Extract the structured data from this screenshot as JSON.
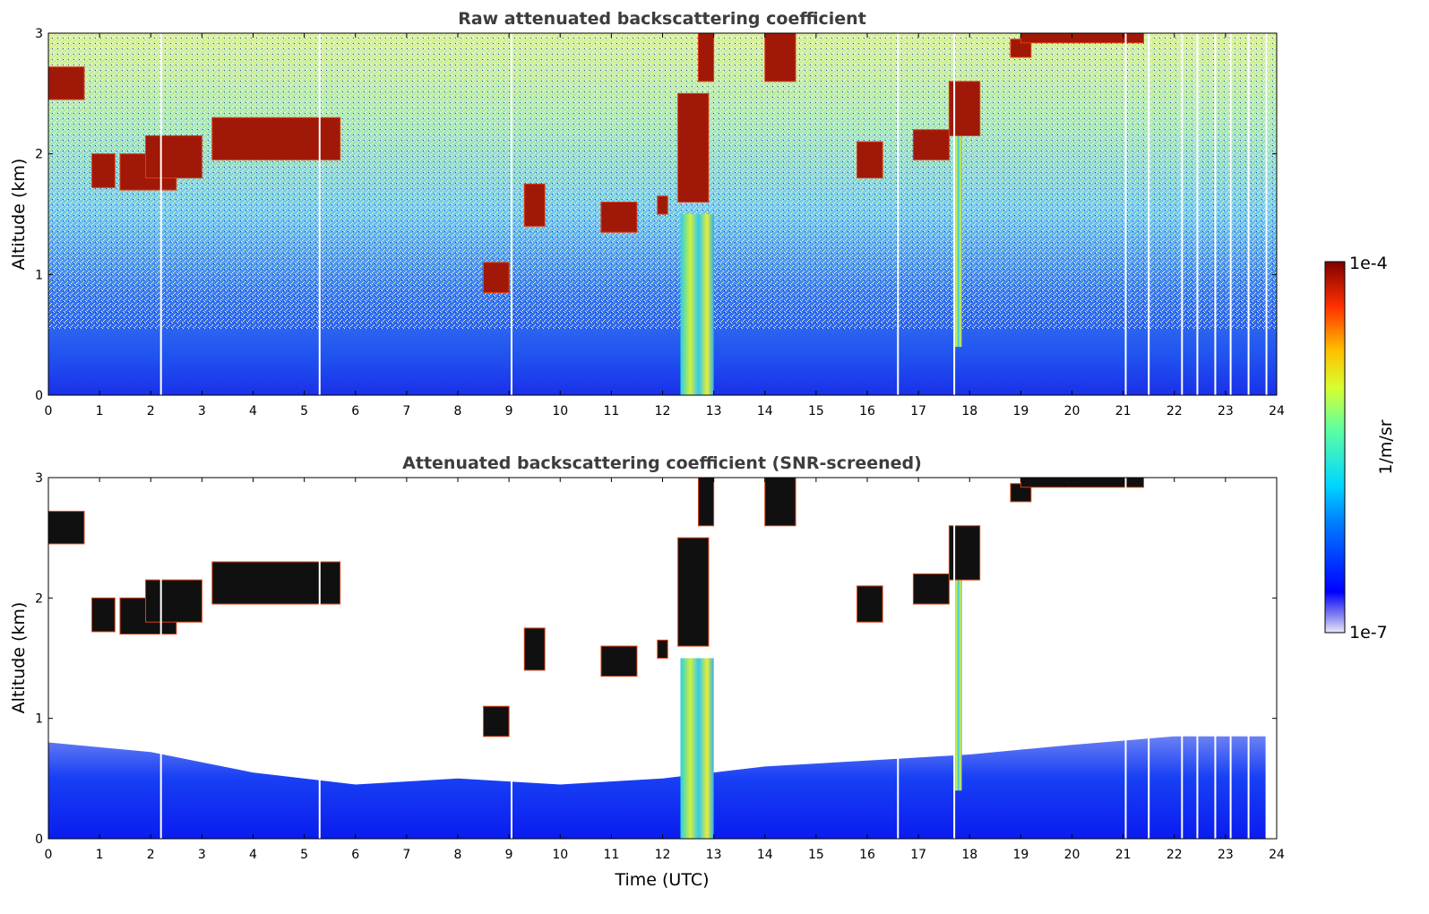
{
  "chart_data": {
    "type": "heatmap",
    "panels": [
      {
        "title": "Raw attenuated backscattering coefficient",
        "ylabel": "Altitude (km)",
        "xlabel": "",
        "xlim": [
          0,
          24
        ],
        "ylim": [
          0,
          3
        ],
        "xticks": [
          "0",
          "1",
          "2",
          "3",
          "4",
          "5",
          "6",
          "7",
          "8",
          "9",
          "10",
          "11",
          "12",
          "13",
          "14",
          "15",
          "16",
          "17",
          "18",
          "19",
          "20",
          "21",
          "22",
          "23",
          "24"
        ],
        "yticks": [
          "0",
          "1",
          "2",
          "3"
        ]
      },
      {
        "title": "Attenuated backscattering coefficient (SNR-screened)",
        "ylabel": "Altitude (km)",
        "xlabel": "Time (UTC)",
        "xlim": [
          0,
          24
        ],
        "ylim": [
          0,
          3
        ],
        "xticks": [
          "0",
          "1",
          "2",
          "3",
          "4",
          "5",
          "6",
          "7",
          "8",
          "9",
          "10",
          "11",
          "12",
          "13",
          "14",
          "15",
          "16",
          "17",
          "18",
          "19",
          "20",
          "21",
          "22",
          "23",
          "24"
        ],
        "yticks": [
          "0",
          "1",
          "2",
          "3"
        ]
      }
    ],
    "colorbar": {
      "label": "1/m/sr",
      "min_label": "1e-7",
      "max_label": "1e-4",
      "scale": "log",
      "colormap": "jet"
    },
    "cloud_layers": [
      {
        "t0": 0.0,
        "t1": 0.7,
        "z0": 2.45,
        "z1": 2.72
      },
      {
        "t0": 0.85,
        "t1": 1.3,
        "z0": 1.72,
        "z1": 2.0
      },
      {
        "t0": 1.4,
        "t1": 2.5,
        "z0": 1.7,
        "z1": 2.0
      },
      {
        "t0": 1.9,
        "t1": 3.0,
        "z0": 1.8,
        "z1": 2.15
      },
      {
        "t0": 3.2,
        "t1": 5.7,
        "z0": 1.95,
        "z1": 2.3
      },
      {
        "t0": 8.5,
        "t1": 9.0,
        "z0": 0.85,
        "z1": 1.1
      },
      {
        "t0": 9.3,
        "t1": 9.7,
        "z0": 1.4,
        "z1": 1.75
      },
      {
        "t0": 10.8,
        "t1": 11.5,
        "z0": 1.35,
        "z1": 1.6
      },
      {
        "t0": 11.9,
        "t1": 12.1,
        "z0": 1.5,
        "z1": 1.65
      },
      {
        "t0": 12.3,
        "t1": 12.9,
        "z0": 1.6,
        "z1": 2.5
      },
      {
        "t0": 12.7,
        "t1": 13.0,
        "z0": 2.6,
        "z1": 3.0
      },
      {
        "t0": 14.0,
        "t1": 14.6,
        "z0": 2.6,
        "z1": 3.0
      },
      {
        "t0": 15.8,
        "t1": 16.3,
        "z0": 1.8,
        "z1": 2.1
      },
      {
        "t0": 16.9,
        "t1": 17.6,
        "z0": 1.95,
        "z1": 2.2
      },
      {
        "t0": 17.6,
        "t1": 18.2,
        "z0": 2.15,
        "z1": 2.6
      },
      {
        "t0": 18.8,
        "t1": 19.2,
        "z0": 2.8,
        "z1": 2.95
      },
      {
        "t0": 19.0,
        "t1": 21.4,
        "z0": 2.92,
        "z1": 3.0
      }
    ],
    "precip_columns": [
      {
        "t0": 12.35,
        "t1": 13.0,
        "z0": 0.0,
        "z1": 1.5
      },
      {
        "t0": 17.7,
        "t1": 17.85,
        "z0": 0.4,
        "z1": 2.3
      }
    ],
    "data_gaps": [
      2.2,
      5.3,
      9.05,
      16.6,
      17.7,
      21.05,
      21.5,
      22.15,
      22.45,
      22.8,
      23.1,
      23.45,
      23.8
    ]
  }
}
